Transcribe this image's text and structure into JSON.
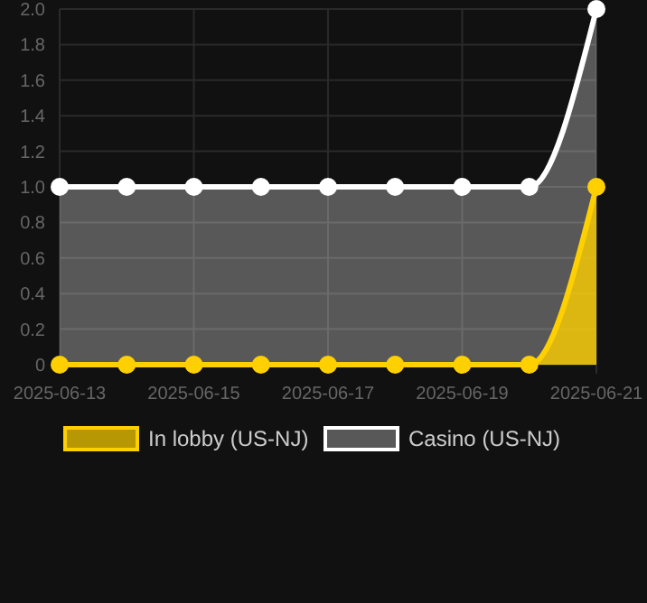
{
  "chart_data": {
    "type": "area",
    "x": [
      "2025-06-13",
      "2025-06-14",
      "2025-06-15",
      "2025-06-16",
      "2025-06-17",
      "2025-06-18",
      "2025-06-19",
      "2025-06-20",
      "2025-06-21"
    ],
    "series": [
      {
        "name": "In lobby (US-NJ)",
        "color": "#ffd000",
        "values": [
          0,
          0,
          0,
          0,
          0,
          0,
          0,
          0,
          1
        ]
      },
      {
        "name": "Casino (US-NJ)",
        "color": "#ffffff",
        "values": [
          1,
          1,
          1,
          1,
          1,
          1,
          1,
          1,
          2
        ]
      }
    ],
    "xlim": [
      "2025-06-13",
      "2025-06-21"
    ],
    "xticks": [
      {
        "value": "2025-06-13",
        "label": "2025-06-13"
      },
      {
        "value": "2025-06-15",
        "label": "2025-06-15"
      },
      {
        "value": "2025-06-17",
        "label": "2025-06-17"
      },
      {
        "value": "2025-06-19",
        "label": "2025-06-19"
      },
      {
        "value": "2025-06-21",
        "label": "2025-06-21"
      }
    ],
    "ylim": [
      0,
      2
    ],
    "yticks": [
      0,
      0.2,
      0.4,
      0.6,
      0.8,
      {
        "value": 1,
        "label": "1.0"
      },
      1.2,
      1.4,
      1.6,
      1.8,
      {
        "value": 2,
        "label": "2.0"
      }
    ],
    "grid": true,
    "legend": "bottom",
    "marker": "circle"
  }
}
